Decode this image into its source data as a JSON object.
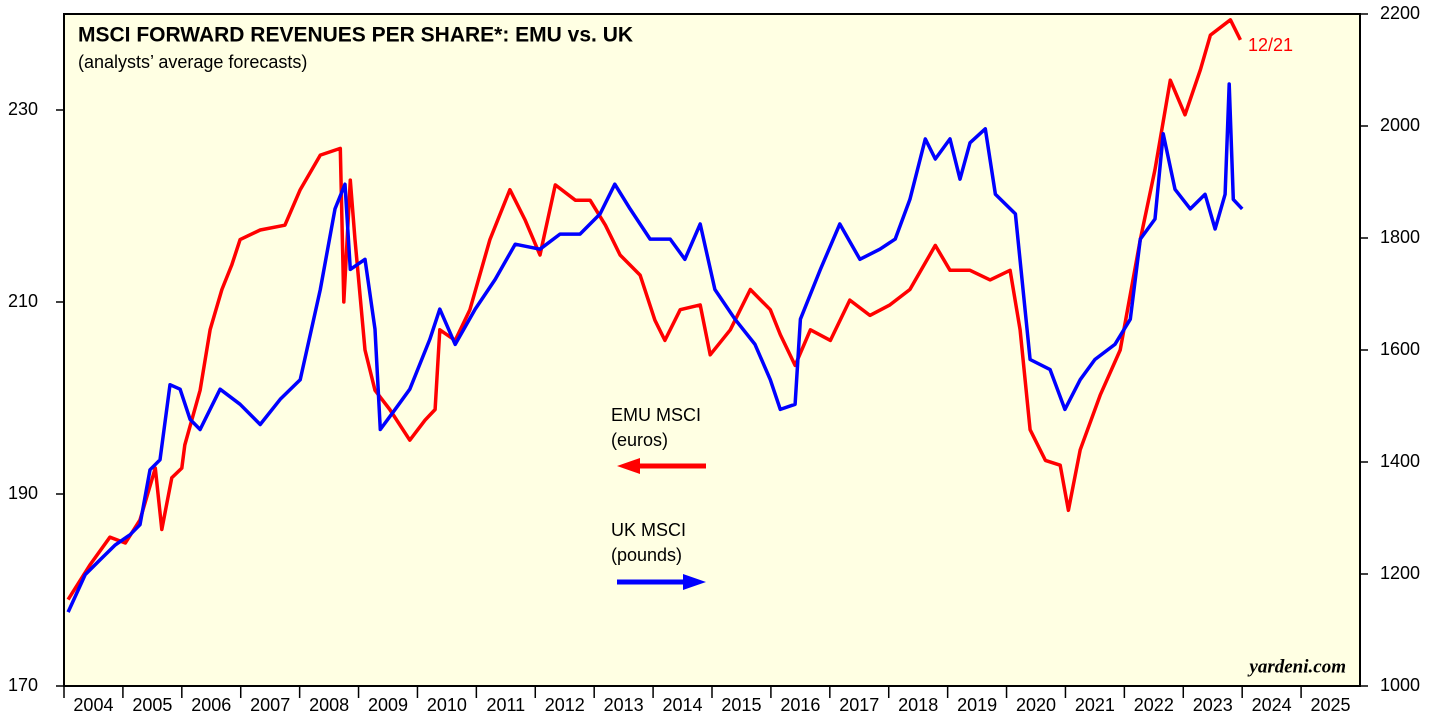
{
  "chart_data": {
    "type": "line",
    "title": "MSCI FORWARD REVENUES PER SHARE*: EMU vs. UK",
    "subtitle": "(analysts’ average forecasts)",
    "xlim": [
      2004,
      2026
    ],
    "xticks": [
      2004,
      2005,
      2006,
      2007,
      2008,
      2009,
      2010,
      2011,
      2012,
      2013,
      2014,
      2015,
      2016,
      2017,
      2018,
      2019,
      2020,
      2021,
      2022,
      2023,
      2024,
      2025
    ],
    "ylim": [
      170,
      240
    ],
    "yticks": [
      170,
      190,
      210,
      230
    ],
    "y2lim": [
      1000,
      2200
    ],
    "y2ticks": [
      1000,
      1200,
      1400,
      1600,
      1800,
      2000,
      2200
    ],
    "annotations": [
      "EMU MSCI",
      "(euros)",
      "UK MSCI",
      "(pounds)",
      "12/21",
      "yardeni.com"
    ],
    "series": [
      {
        "name": "EMU MSCI",
        "color": "#ff0000",
        "axis": "y",
        "x": [
          2004.07,
          2004.44,
          2004.78,
          2005.04,
          2005.29,
          2005.55,
          2005.66,
          2005.83,
          2006.0,
          2006.05,
          2006.31,
          2006.48,
          2006.68,
          2006.85,
          2006.99,
          2007.33,
          2007.75,
          2008.01,
          2008.35,
          2008.69,
          2008.75,
          2008.86,
          2008.94,
          2009.11,
          2009.28,
          2009.53,
          2009.87,
          2010.13,
          2010.3,
          2010.38,
          2010.64,
          2010.89,
          2011.23,
          2011.57,
          2011.83,
          2012.08,
          2012.34,
          2012.68,
          2012.93,
          2013.19,
          2013.44,
          2013.78,
          2014.03,
          2014.2,
          2014.46,
          2014.8,
          2014.97,
          2015.31,
          2015.65,
          2015.99,
          2016.16,
          2016.41,
          2016.67,
          2017.01,
          2017.34,
          2017.68,
          2018.02,
          2018.36,
          2018.79,
          2019.04,
          2019.38,
          2019.72,
          2020.06,
          2020.23,
          2020.4,
          2020.66,
          2020.91,
          2021.05,
          2021.25,
          2021.59,
          2021.93,
          2022.27,
          2022.52,
          2022.78,
          2023.03,
          2023.29,
          2023.46,
          2023.8,
          2023.97
        ],
        "values": [
          179,
          182.6,
          185.5,
          184.9,
          187.3,
          192.7,
          186.3,
          191.7,
          192.7,
          195.1,
          200.8,
          207.1,
          211.3,
          213.9,
          216.5,
          217.5,
          218,
          221.7,
          225.3,
          226,
          210,
          222.7,
          216.5,
          205,
          200.8,
          198.8,
          195.6,
          197.7,
          198.8,
          207.1,
          206,
          209.2,
          216.5,
          221.7,
          218.5,
          214.9,
          222.2,
          220.6,
          220.6,
          218,
          214.9,
          212.8,
          208.1,
          206,
          209.2,
          209.7,
          204.5,
          207.1,
          211.3,
          209.2,
          206.6,
          203.4,
          207.1,
          206,
          210.2,
          208.6,
          209.7,
          211.3,
          215.9,
          213.3,
          213.3,
          212.3,
          213.3,
          207.1,
          196.7,
          193.5,
          193,
          188.3,
          194.6,
          200.3,
          205,
          216.5,
          223.8,
          233.1,
          229.5,
          234.2,
          237.8,
          239.4,
          237.3
        ]
      },
      {
        "name": "UK MSCI",
        "color": "#0000ff",
        "axis": "y2",
        "x": [
          2004.07,
          2004.36,
          2004.61,
          2004.87,
          2005.12,
          2005.29,
          2005.46,
          2005.63,
          2005.8,
          2005.97,
          2006.14,
          2006.31,
          2006.65,
          2006.99,
          2007.33,
          2007.67,
          2008.01,
          2008.35,
          2008.6,
          2008.77,
          2008.86,
          2009.11,
          2009.28,
          2009.37,
          2009.62,
          2009.87,
          2010.21,
          2010.38,
          2010.64,
          2010.98,
          2011.32,
          2011.66,
          2012.08,
          2012.42,
          2012.76,
          2013.1,
          2013.35,
          2013.61,
          2013.95,
          2014.29,
          2014.54,
          2014.8,
          2015.05,
          2015.39,
          2015.73,
          2015.99,
          2016.16,
          2016.41,
          2016.5,
          2016.84,
          2017.17,
          2017.51,
          2017.85,
          2018.11,
          2018.36,
          2018.62,
          2018.79,
          2019.04,
          2019.21,
          2019.38,
          2019.64,
          2019.81,
          2020.15,
          2020.4,
          2020.74,
          2020.99,
          2021.25,
          2021.5,
          2021.84,
          2022.1,
          2022.27,
          2022.52,
          2022.66,
          2022.86,
          2023.12,
          2023.37,
          2023.54,
          2023.71,
          2023.78,
          2023.85,
          2024.0
        ],
        "values": [
          1132,
          1199,
          1225,
          1252,
          1270,
          1288,
          1386,
          1404,
          1538,
          1530,
          1476,
          1458,
          1530,
          1503,
          1467,
          1512,
          1547,
          1708,
          1852,
          1896,
          1744,
          1762,
          1637,
          1458,
          1494,
          1530,
          1619,
          1673,
          1610,
          1673,
          1726,
          1789,
          1780,
          1807,
          1807,
          1843,
          1896,
          1852,
          1798,
          1798,
          1762,
          1825,
          1708,
          1655,
          1610,
          1547,
          1494,
          1503,
          1655,
          1744,
          1825,
          1762,
          1780,
          1798,
          1869,
          1977,
          1941,
          1977,
          1905,
          1970,
          1995,
          1878,
          1843,
          1583,
          1565,
          1494,
          1547,
          1583,
          1610,
          1655,
          1798,
          1834,
          1986,
          1887,
          1852,
          1878,
          1816,
          1878,
          2075,
          1869,
          1852
        ]
      }
    ]
  }
}
